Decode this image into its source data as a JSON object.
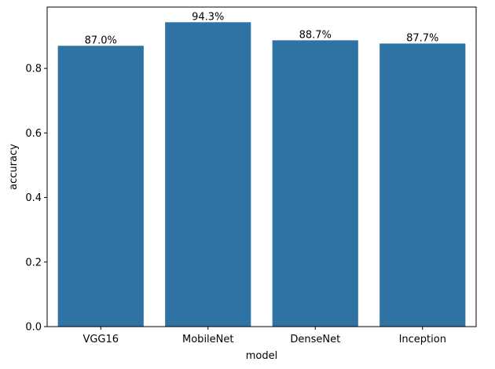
{
  "chart_data": {
    "type": "bar",
    "categories": [
      "VGG16",
      "MobileNet",
      "DenseNet",
      "Inception"
    ],
    "values": [
      0.87,
      0.943,
      0.887,
      0.877
    ],
    "data_labels": [
      "87.0%",
      "94.3%",
      "88.7%",
      "87.7%"
    ],
    "xlabel": "model",
    "ylabel": "accuracy",
    "ylim": [
      0,
      0.99
    ],
    "yticks": [
      0.0,
      0.2,
      0.4,
      0.6,
      0.8
    ],
    "ytick_labels": [
      "0.0",
      "0.2",
      "0.4",
      "0.6",
      "0.8"
    ],
    "grid": false,
    "bar_color": "#2f72a4"
  }
}
